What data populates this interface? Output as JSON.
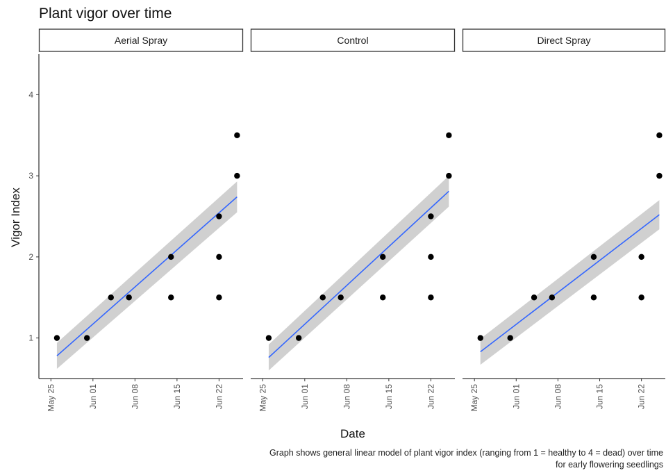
{
  "chart_data": {
    "type": "scatter",
    "title": "Plant vigor over time",
    "xlabel": "Date",
    "ylabel": "Vigor Index",
    "caption_lines": [
      "Graph shows general linear model of plant vigor index (ranging from 1 = healthy to 4 = dead) over time",
      "for early flowering seedlings"
    ],
    "x_ticks": [
      {
        "date": "2021-05-25",
        "label": "May 25"
      },
      {
        "date": "2021-06-01",
        "label": "Jun 01"
      },
      {
        "date": "2021-06-08",
        "label": "Jun 08"
      },
      {
        "date": "2021-06-15",
        "label": "Jun 15"
      },
      {
        "date": "2021-06-22",
        "label": "Jun 22"
      }
    ],
    "xlim": [
      "2021-05-23",
      "2021-06-26"
    ],
    "y_ticks": [
      1,
      2,
      3,
      4
    ],
    "ylim": [
      0.5,
      4.5
    ],
    "grid": false,
    "colors": {
      "points": "#000000",
      "fit_line": "#3366ff",
      "confidence_band": "#c8c8c8"
    },
    "facets": [
      {
        "label": "Aerial Spray",
        "points": [
          {
            "x": "2021-05-26",
            "y": 1
          },
          {
            "x": "2021-05-31",
            "y": 1
          },
          {
            "x": "2021-06-04",
            "y": 1.5
          },
          {
            "x": "2021-06-07",
            "y": 1.5
          },
          {
            "x": "2021-06-14",
            "y": 1.5
          },
          {
            "x": "2021-06-14",
            "y": 2
          },
          {
            "x": "2021-06-22",
            "y": 1.5
          },
          {
            "x": "2021-06-22",
            "y": 2
          },
          {
            "x": "2021-06-22",
            "y": 2.5
          },
          {
            "x": "2021-06-25",
            "y": 3
          },
          {
            "x": "2021-06-25",
            "y": 3.5
          }
        ],
        "fit": {
          "x": [
            "2021-05-26",
            "2021-06-25"
          ],
          "y": [
            0.78,
            2.74
          ]
        },
        "band": {
          "lower": [
            0.62,
            2.55
          ],
          "upper": [
            0.94,
            2.93
          ]
        }
      },
      {
        "label": "Control",
        "points": [
          {
            "x": "2021-05-26",
            "y": 1
          },
          {
            "x": "2021-05-31",
            "y": 1
          },
          {
            "x": "2021-06-04",
            "y": 1.5
          },
          {
            "x": "2021-06-07",
            "y": 1.5
          },
          {
            "x": "2021-06-14",
            "y": 1.5
          },
          {
            "x": "2021-06-14",
            "y": 2
          },
          {
            "x": "2021-06-22",
            "y": 1.5
          },
          {
            "x": "2021-06-22",
            "y": 2
          },
          {
            "x": "2021-06-22",
            "y": 2.5
          },
          {
            "x": "2021-06-25",
            "y": 3
          },
          {
            "x": "2021-06-25",
            "y": 3.5
          }
        ],
        "fit": {
          "x": [
            "2021-05-26",
            "2021-06-25"
          ],
          "y": [
            0.76,
            2.81
          ]
        },
        "band": {
          "lower": [
            0.6,
            2.62
          ],
          "upper": [
            0.92,
            3.0
          ]
        }
      },
      {
        "label": "Direct Spray",
        "points": [
          {
            "x": "2021-05-26",
            "y": 1
          },
          {
            "x": "2021-05-31",
            "y": 1
          },
          {
            "x": "2021-06-04",
            "y": 1.5
          },
          {
            "x": "2021-06-07",
            "y": 1.5
          },
          {
            "x": "2021-06-14",
            "y": 1.5
          },
          {
            "x": "2021-06-14",
            "y": 2
          },
          {
            "x": "2021-06-22",
            "y": 1.5
          },
          {
            "x": "2021-06-22",
            "y": 2
          },
          {
            "x": "2021-06-25",
            "y": 3
          },
          {
            "x": "2021-06-25",
            "y": 3.5
          }
        ],
        "fit": {
          "x": [
            "2021-05-26",
            "2021-06-25"
          ],
          "y": [
            0.83,
            2.52
          ]
        },
        "band": {
          "lower": [
            0.67,
            2.34
          ],
          "upper": [
            0.99,
            2.7
          ]
        }
      }
    ]
  }
}
